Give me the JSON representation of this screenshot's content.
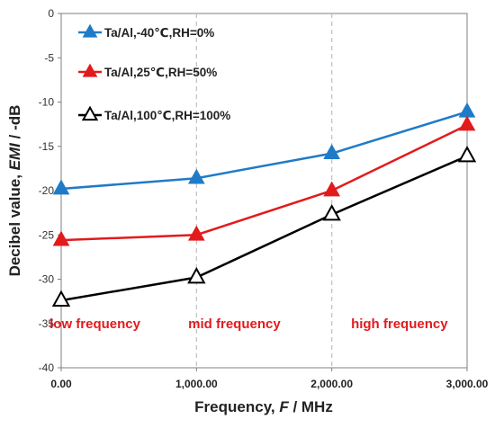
{
  "chart_data": {
    "type": "line",
    "title": "",
    "xlabel": "Frequency, F / MHz",
    "ylabel": "Decibel value, EMI / -dB",
    "xlabel_parts": {
      "pre": "Frequency, ",
      "var": "F",
      "post": " / MHz"
    },
    "ylabel_parts": {
      "pre": "Decibel value, ",
      "var": "EMI",
      "post": " / -dB"
    },
    "x": [
      0,
      1000,
      2000,
      3000
    ],
    "xticks": [
      "0.00",
      "1,000.00",
      "2,000.00",
      "3,000.00"
    ],
    "xlim": [
      0,
      3000
    ],
    "ylim": [
      -40,
      0
    ],
    "yticks": [
      "-40",
      "-35",
      "-30",
      "-25",
      "-20",
      "-15",
      "-10",
      "-5",
      "0"
    ],
    "grid": "vertical dashed lines at 1,000.00 and 2,000.00",
    "legend_position": "top-left",
    "series": [
      {
        "name": "Ta/Al,-40℃,RH=0%",
        "color": "#1f7bc8",
        "marker": "filled-triangle",
        "values": [
          -19.8,
          -18.6,
          -15.8,
          -11.1
        ]
      },
      {
        "name": "Ta/Al,25℃,RH=50%",
        "color": "#e31a1c",
        "marker": "filled-triangle",
        "values": [
          -25.6,
          -25.0,
          -20.0,
          -12.6
        ]
      },
      {
        "name": "Ta/Al,100℃,RH=100%",
        "color": "#000000",
        "marker": "open-triangle",
        "values": [
          -32.4,
          -29.8,
          -22.7,
          -16.1
        ]
      }
    ],
    "annotations": [
      {
        "text": "low frequency",
        "x": 250,
        "y": -35
      },
      {
        "text": "mid frequency",
        "x": 1280,
        "y": -35
      },
      {
        "text": "high frequency",
        "x": 2500,
        "y": -35
      }
    ],
    "annotation_color": "#e31a1c"
  }
}
